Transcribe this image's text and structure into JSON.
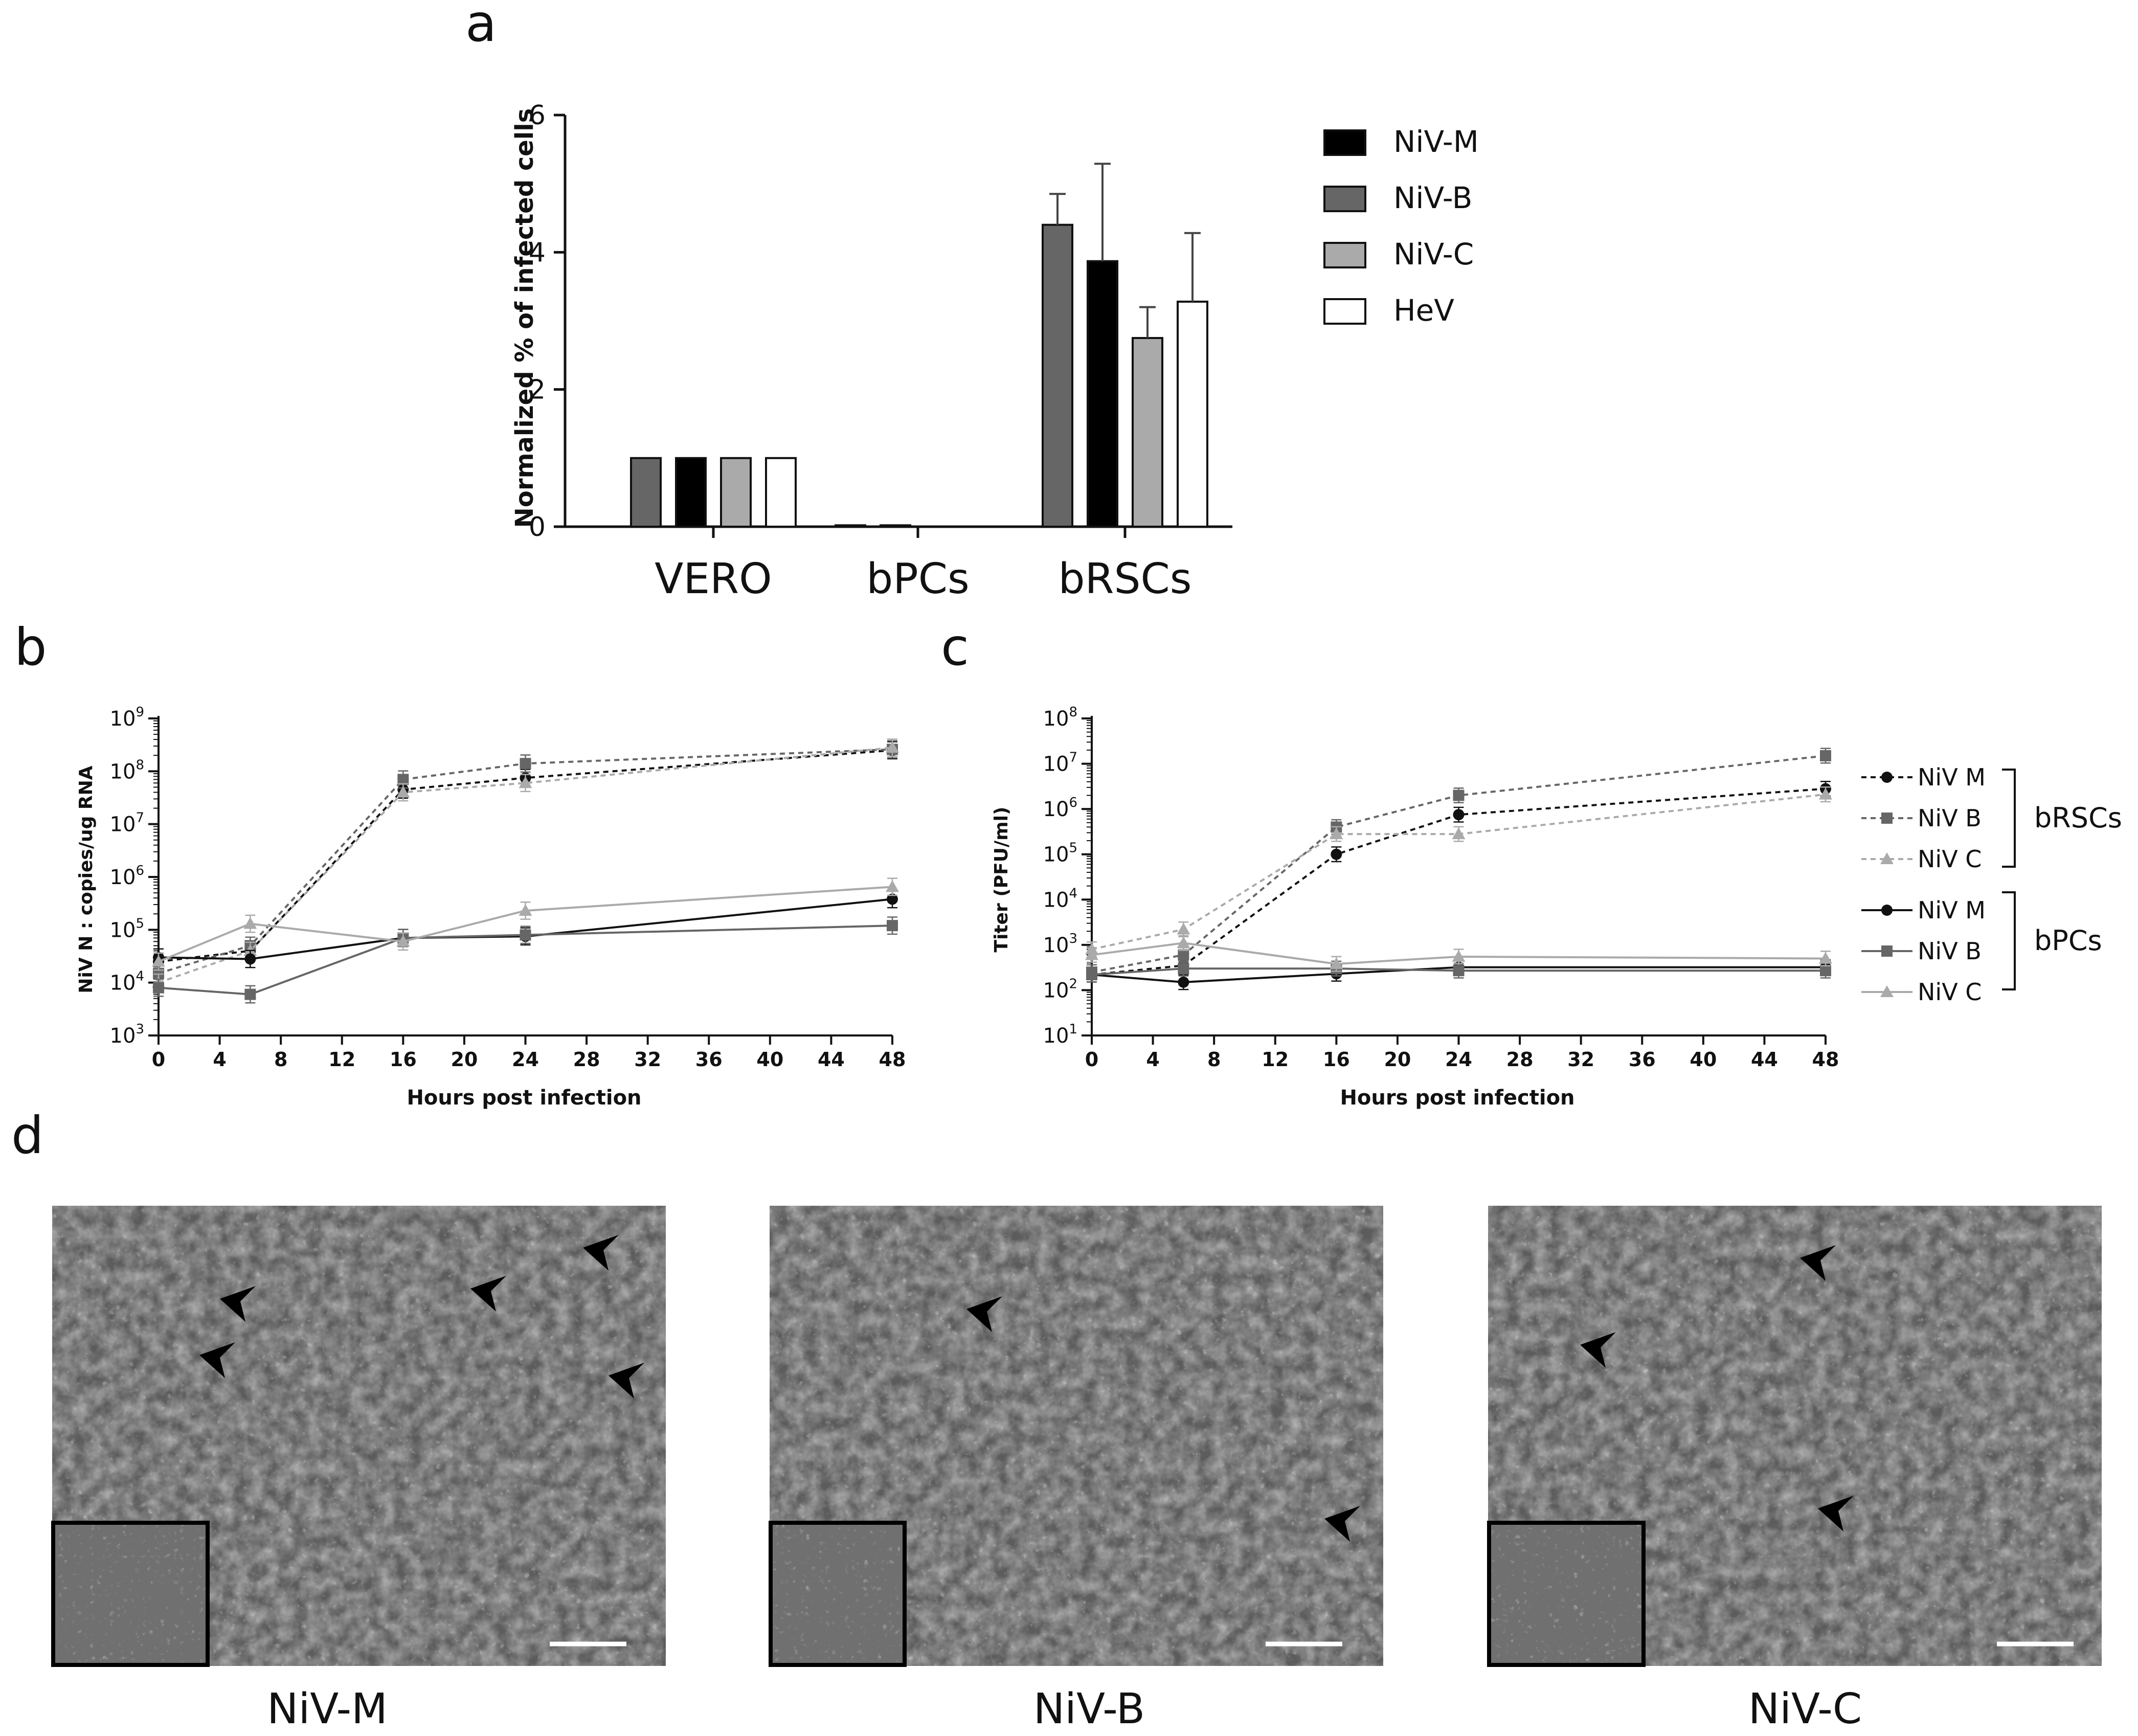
{
  "panels": {
    "a": "a",
    "b": "b",
    "c": "c",
    "d": "d"
  },
  "chart_data": [
    {
      "id": "a",
      "type": "bar",
      "categories": [
        "VERO",
        "bPCs",
        "bRSCs"
      ],
      "ylabel": "Normalized % of infected cells",
      "xlabel": "",
      "ylim": [
        0,
        6
      ],
      "yticks": [
        0,
        2,
        4,
        6
      ],
      "grid": false,
      "legend_position": "right",
      "series": [
        {
          "name": "NiV-B",
          "color": "#666666",
          "values": [
            1,
            0.02,
            4.4
          ],
          "errors": [
            0,
            0,
            0.45
          ]
        },
        {
          "name": "NiV-M",
          "color": "#000000",
          "values": [
            1,
            0.02,
            3.87
          ],
          "errors": [
            0,
            0,
            1.42
          ]
        },
        {
          "name": "NiV-C",
          "color": "#aaaaaa",
          "values": [
            1,
            0,
            2.75
          ],
          "errors": [
            0,
            0,
            0.45
          ]
        },
        {
          "name": "HeV",
          "color": "#ffffff",
          "values": [
            1,
            0,
            3.28
          ],
          "errors": [
            0,
            0,
            1.0
          ]
        }
      ],
      "legend_order": [
        "NiV-M",
        "NiV-B",
        "NiV-C",
        "HeV"
      ]
    },
    {
      "id": "b",
      "type": "line",
      "xlabel": "Hours post infection",
      "ylabel": "NiV N : copies/ug RNA",
      "xlim": [
        0,
        48
      ],
      "xticks": [
        0,
        4,
        8,
        12,
        16,
        20,
        24,
        28,
        32,
        36,
        40,
        44,
        48
      ],
      "ylim": [
        1000,
        1000000000
      ],
      "yscale": "log",
      "ytick_exponents": [
        3,
        4,
        5,
        6,
        7,
        8,
        9
      ],
      "grid": false,
      "x": [
        0,
        6,
        16,
        24,
        48
      ],
      "series": [
        {
          "name": "NiV M",
          "group": "bRSCs",
          "dashed": true,
          "marker": "circle",
          "color": "#111111",
          "values": [
            25000,
            40000,
            45000000,
            75000000,
            250000000
          ]
        },
        {
          "name": "NiV B",
          "group": "bRSCs",
          "dashed": true,
          "marker": "square",
          "color": "#666666",
          "values": [
            15000,
            50000,
            70000000,
            140000000,
            260000000
          ]
        },
        {
          "name": "NiV C",
          "group": "bRSCs",
          "dashed": true,
          "marker": "triangle",
          "color": "#aaaaaa",
          "values": [
            10000,
            40000,
            40000000,
            60000000,
            280000000
          ]
        },
        {
          "name": "NiV M",
          "group": "bPCs",
          "dashed": false,
          "marker": "circle",
          "color": "#111111",
          "values": [
            30000,
            28000,
            70000,
            75000,
            380000
          ]
        },
        {
          "name": "NiV B",
          "group": "bPCs",
          "dashed": false,
          "marker": "square",
          "color": "#666666",
          "values": [
            8000,
            6000,
            70000,
            80000,
            120000
          ]
        },
        {
          "name": "NiV C",
          "group": "bPCs",
          "dashed": false,
          "marker": "triangle",
          "color": "#aaaaaa",
          "values": [
            25000,
            130000,
            60000,
            230000,
            650000
          ]
        }
      ]
    },
    {
      "id": "c",
      "type": "line",
      "xlabel": "Hours post infection",
      "ylabel": "Titer (PFU/ml)",
      "xlim": [
        0,
        48
      ],
      "xticks": [
        0,
        4,
        8,
        12,
        16,
        20,
        24,
        28,
        32,
        36,
        40,
        44,
        48
      ],
      "ylim": [
        10,
        100000000
      ],
      "yscale": "log",
      "ytick_exponents": [
        1,
        2,
        3,
        4,
        5,
        6,
        7,
        8
      ],
      "grid": false,
      "legend_position": "right",
      "x": [
        0,
        6,
        16,
        24,
        48
      ],
      "series": [
        {
          "name": "NiV M",
          "group": "bRSCs",
          "dashed": true,
          "marker": "circle",
          "color": "#111111",
          "values": [
            220,
            350,
            100000,
            750000,
            2800000
          ]
        },
        {
          "name": "NiV B",
          "group": "bRSCs",
          "dashed": true,
          "marker": "square",
          "color": "#666666",
          "values": [
            250,
            600,
            400000,
            2000000,
            15000000
          ]
        },
        {
          "name": "NiV C",
          "group": "bRSCs",
          "dashed": true,
          "marker": "triangle",
          "color": "#aaaaaa",
          "values": [
            800,
            2200,
            280000,
            280000,
            2100000
          ]
        },
        {
          "name": "NiV M",
          "group": "bPCs",
          "dashed": false,
          "marker": "circle",
          "color": "#111111",
          "values": [
            220,
            150,
            230,
            320,
            320
          ]
        },
        {
          "name": "NiV B",
          "group": "bPCs",
          "dashed": false,
          "marker": "square",
          "color": "#666666",
          "values": [
            220,
            300,
            300,
            270,
            270
          ]
        },
        {
          "name": "NiV C",
          "group": "bPCs",
          "dashed": false,
          "marker": "triangle",
          "color": "#aaaaaa",
          "values": [
            600,
            1100,
            380,
            550,
            500
          ]
        }
      ],
      "legend_groups": [
        "bRSCs",
        "bPCs"
      ]
    }
  ],
  "micrographs": [
    {
      "caption": "NiV-M"
    },
    {
      "caption": "NiV-B"
    },
    {
      "caption": "NiV-C"
    }
  ]
}
